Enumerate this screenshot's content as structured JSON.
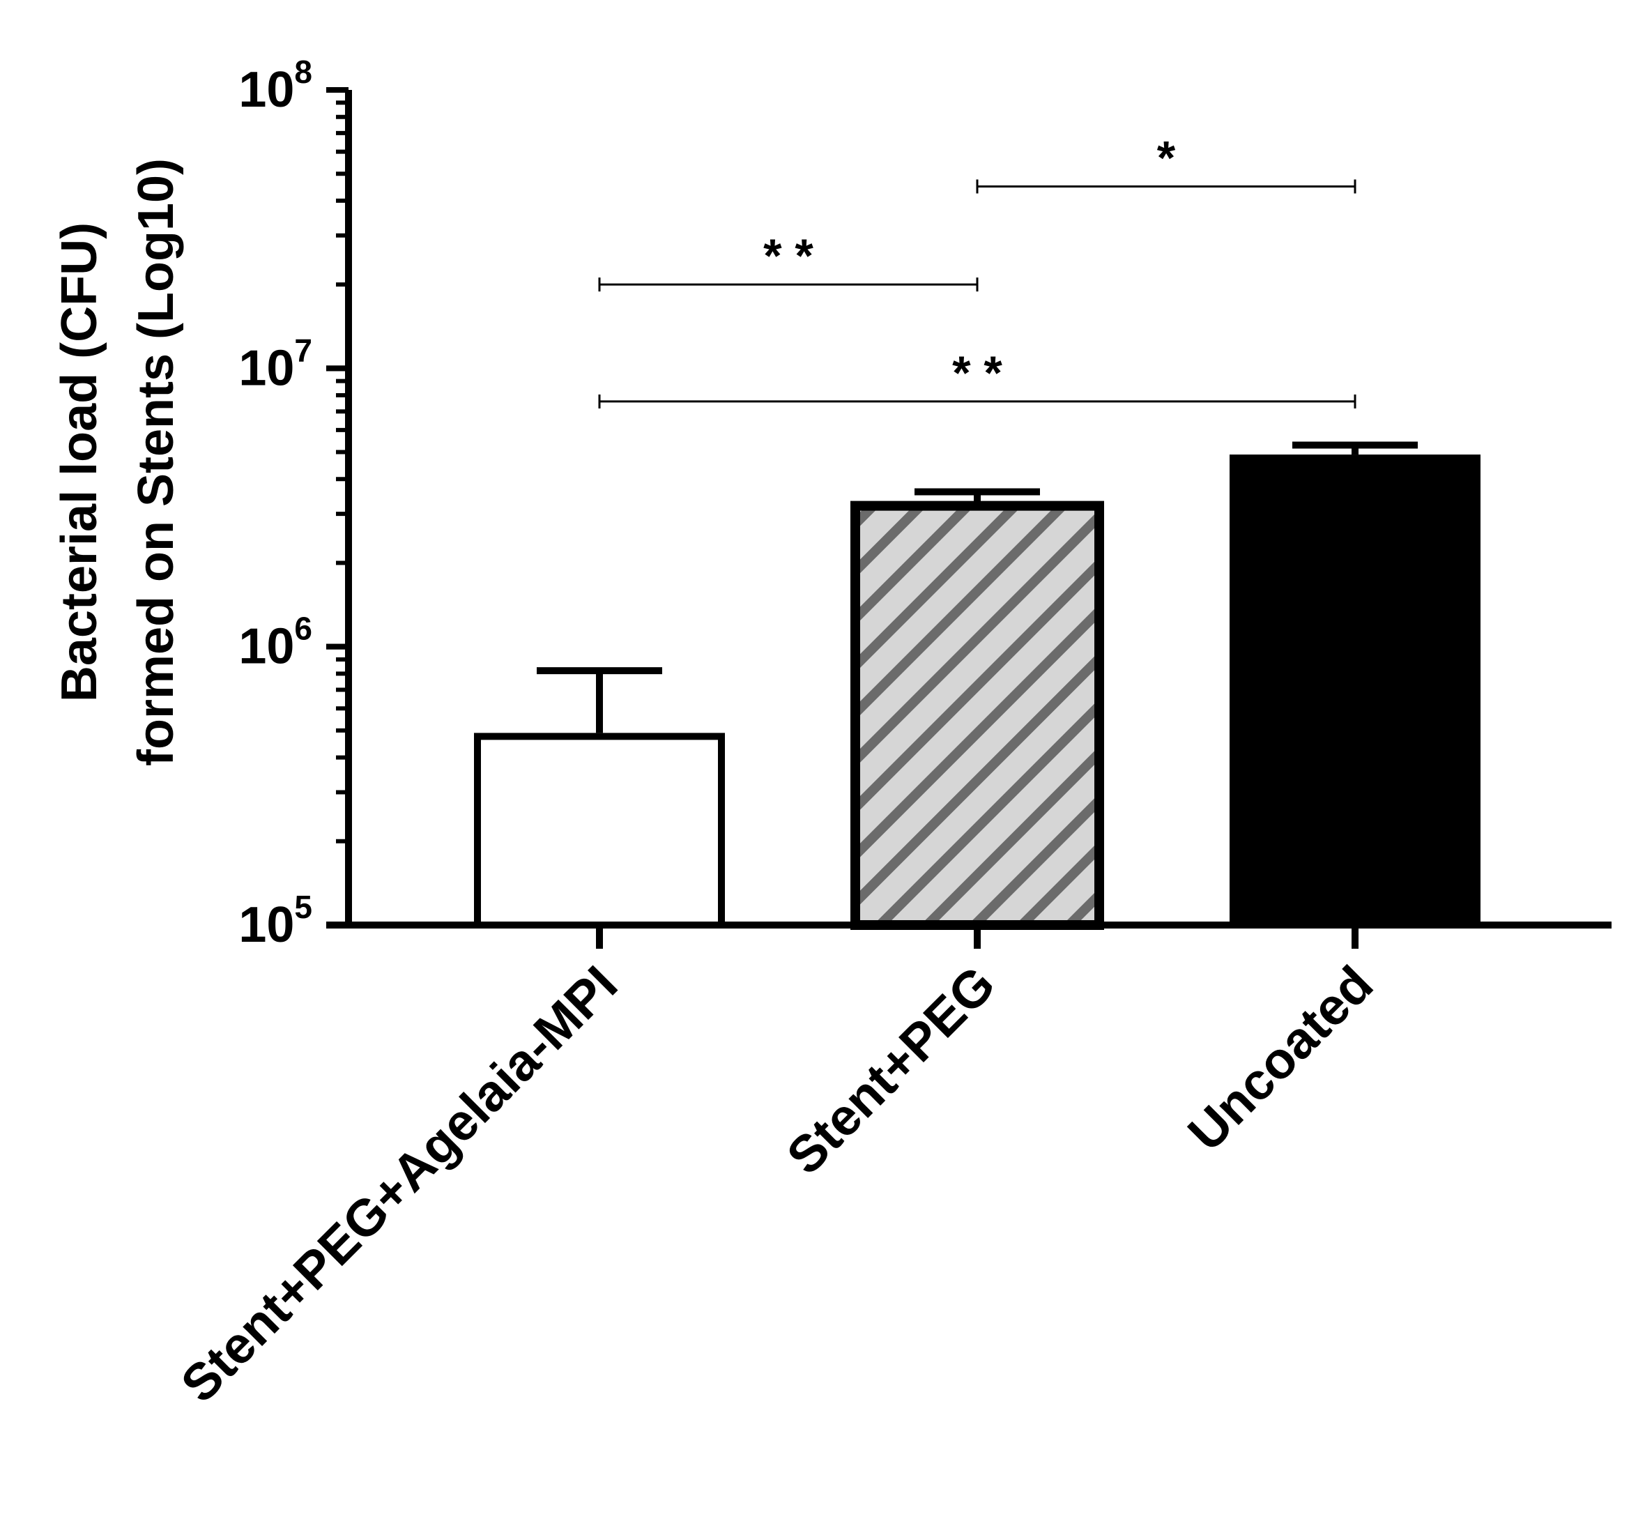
{
  "chart_data": {
    "type": "bar",
    "title": "",
    "xlabel": "",
    "ylabel_lines": [
      "Bacterial load (CFU)",
      "formed on Stents (Log10)"
    ],
    "yscale": "log",
    "ylim": [
      100000,
      100000000
    ],
    "ytick_labels": [
      {
        "value": 100000,
        "base": "10",
        "exp": "5"
      },
      {
        "value": 1000000,
        "base": "10",
        "exp": "6"
      },
      {
        "value": 10000000,
        "base": "10",
        "exp": "7"
      },
      {
        "value": 100000000,
        "base": "10",
        "exp": "8"
      }
    ],
    "categories": [
      "Stent+PEG+Agelaia-MPI",
      "Stent+PEG",
      "Uncoated"
    ],
    "values": [
      490000,
      3300000,
      4900000
    ],
    "error_upper": [
      820000,
      3600000,
      5300000
    ],
    "fills": [
      "white",
      "hatched",
      "black"
    ],
    "colors": {
      "axis": "#000000",
      "hatch_bg": "#d6d6d6",
      "hatch_stripe": "#6b6b6b",
      "solid": "#000000"
    },
    "significance": [
      {
        "from": 0,
        "to": 1,
        "label": "* *",
        "y": 20000000
      },
      {
        "from": 1,
        "to": 2,
        "label": "*",
        "y": 45000000
      },
      {
        "from": 0,
        "to": 2,
        "label": "* *",
        "y": 7600000
      }
    ],
    "grid": false,
    "legend": "none"
  }
}
